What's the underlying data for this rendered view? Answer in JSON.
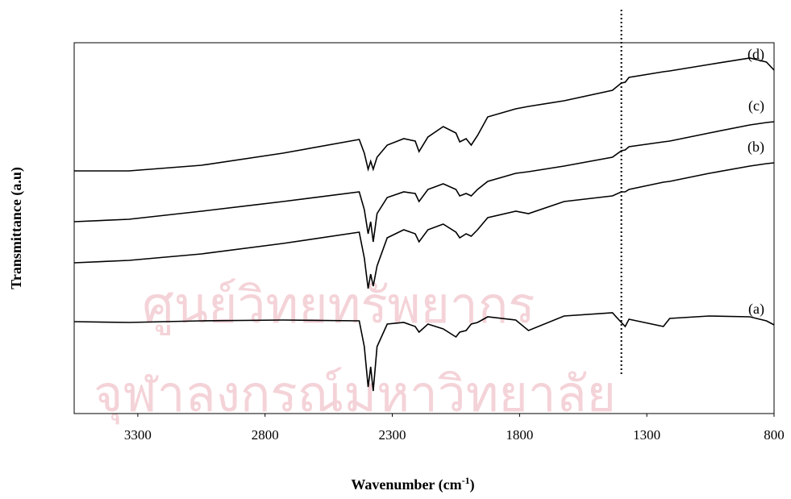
{
  "chart_data": {
    "type": "line",
    "xlabel": [
      "Wavenumber (cm",
      "-1",
      ")"
    ],
    "ylabel": "Transmittance (a.u)",
    "watermark": [
      "ศูนย์วิทยทรัพยากร",
      "จุฬาลงกรณ์มหาวิทยาลัย"
    ],
    "x": [
      3550,
      3335,
      3050,
      2730,
      2430,
      2410,
      2395,
      2385,
      2375,
      2360,
      2320,
      2255,
      2210,
      2195,
      2160,
      2100,
      2050,
      2035,
      2010,
      1990,
      1965,
      1925,
      1815,
      1765,
      1625,
      1435,
      1400,
      1385,
      1370,
      1235,
      1210,
      1055,
      895,
      830,
      800
    ],
    "series": [
      {
        "name": "(d)",
        "color": "#000000",
        "values": [
          301,
          301,
          308,
          323,
          340,
          323,
          303,
          313,
          303,
          318,
          333,
          341,
          338,
          325,
          343,
          356,
          348,
          337,
          341,
          333,
          345,
          368,
          378,
          381,
          388,
          401,
          410,
          411,
          417,
          424,
          425,
          433,
          441,
          436,
          426
        ]
      },
      {
        "name": "(c)",
        "color": "#000000",
        "values": [
          238,
          241,
          251,
          263,
          275,
          253,
          223,
          238,
          213,
          248,
          268,
          275,
          273,
          263,
          278,
          285,
          278,
          270,
          273,
          270,
          278,
          288,
          298,
          300,
          307,
          318,
          326,
          327,
          331,
          337,
          338,
          348,
          358,
          361,
          362
        ]
      },
      {
        "name": "(b)",
        "color": "#000000",
        "values": [
          187,
          190,
          198,
          211,
          225,
          193,
          155,
          173,
          158,
          183,
          218,
          228,
          223,
          213,
          228,
          235,
          225,
          218,
          223,
          220,
          228,
          243,
          251,
          248,
          263,
          270,
          275,
          275,
          278,
          287,
          288,
          298,
          307,
          310,
          311
        ]
      },
      {
        "name": "(a)",
        "color": "#000000",
        "values": [
          114,
          113,
          115,
          116,
          115,
          83,
          33,
          58,
          28,
          83,
          111,
          113,
          108,
          101,
          111,
          105,
          95,
          101,
          103,
          111,
          113,
          120,
          116,
          103,
          121,
          125,
          113,
          108,
          117,
          108,
          118,
          121,
          120,
          115,
          110
        ]
      }
    ],
    "xlim": [
      3550,
      800
    ],
    "xticks": [
      3300,
      2800,
      2300,
      1800,
      1300,
      800
    ],
    "ylim": [
      0,
      460
    ],
    "vline": 1400
  }
}
